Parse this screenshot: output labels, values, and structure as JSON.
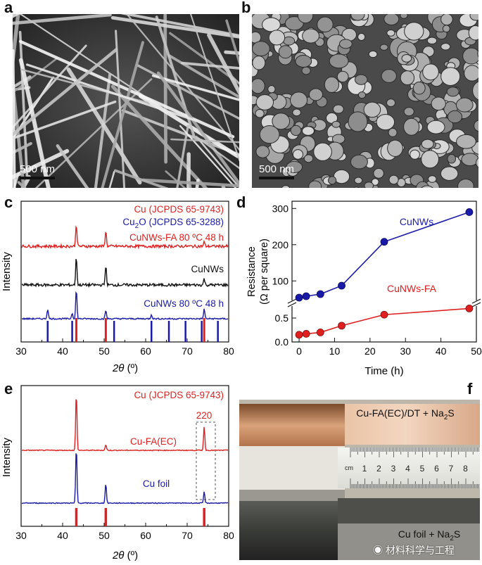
{
  "panels": {
    "a": {
      "label": "a",
      "scale": "500 nm"
    },
    "b": {
      "label": "b",
      "scale": "500 nm"
    },
    "c": {
      "label": "c",
      "ref_cu": "Cu (JCPDS 65-9743)",
      "ref_cu2o_prefix": "Cu",
      "ref_cu2o_sub": "2",
      "ref_cu2o_suffix": "O (JCPDS 65-3288)",
      "trace_fa": "CuNWs-FA 80 ºC 48 h",
      "trace_cunws": "CuNWs",
      "trace_80": "CuNWs 80 ºC 48 h",
      "ylabel": "Intensity",
      "xlabel_italic": "2θ",
      "xlabel_unit": " (º)",
      "xticks": [
        "30",
        "40",
        "50",
        "60",
        "70",
        "80"
      ]
    },
    "d": {
      "label": "d",
      "ylabel_line1": "Resistance",
      "ylabel_line2": "(Ω per square)",
      "xlabel": "Time (h)",
      "series_cunws": "CuNWs",
      "series_fa": "CuNWs-FA",
      "xticks": [
        "0",
        "10",
        "20",
        "30",
        "40",
        "50"
      ],
      "yticks_top": [
        "100",
        "200",
        "300"
      ],
      "yticks_bottom": [
        "0.0",
        "0.5"
      ]
    },
    "e": {
      "label": "e",
      "ref_cu": "Cu (JCPDS 65-9743)",
      "peak": "220",
      "trace_fa": "Cu-FA(EC)",
      "trace_foil": "Cu foil",
      "ylabel": "Intensity",
      "xlabel_italic": "2θ",
      "xlabel_unit": " (º)",
      "xticks": [
        "30",
        "40",
        "50",
        "60",
        "70",
        "80"
      ]
    },
    "f": {
      "label": "f",
      "top_caption_prefix": "Cu-FA(EC)/DT + Na",
      "top_caption_sub": "2",
      "top_caption_suffix": "S",
      "bottom_caption_prefix": "Cu foil + Na",
      "bottom_caption_sub": "2",
      "bottom_caption_suffix": "S",
      "ruler_unit": "cm",
      "ruler_numbers": [
        "1",
        "2",
        "3",
        "4",
        "5",
        "6",
        "7",
        "8"
      ],
      "watermark": "材料科学与工程"
    }
  },
  "chart_data": [
    {
      "type": "line",
      "panel": "c",
      "xlim": [
        30,
        80
      ],
      "series": [
        {
          "name": "CuNWs-FA 80 ºC 48 h",
          "color": "#e02020",
          "peaks": [
            43.3,
            50.4,
            74.1
          ]
        },
        {
          "name": "CuNWs",
          "color": "#111111",
          "peaks": [
            43.3,
            50.4,
            74.1
          ]
        },
        {
          "name": "CuNWs 80 ºC 48 h",
          "color": "#1a1aa8",
          "peaks": [
            36.4,
            42.3,
            43.3,
            50.4,
            61.4,
            74.1
          ]
        }
      ],
      "reference_cu": [
        43.3,
        50.4,
        74.1
      ],
      "reference_cu2o": [
        36.4,
        42.3,
        52.4,
        61.4,
        65.6,
        69.6,
        73.5,
        77.4
      ]
    },
    {
      "type": "line",
      "panel": "d",
      "xlim": [
        -2,
        50
      ],
      "series": [
        {
          "name": "CuNWs",
          "color": "#1a1aa8",
          "x": [
            0,
            2,
            6,
            12,
            24,
            48
          ],
          "y": [
            0.88,
            0.9,
            0.98,
            1.2,
            208,
            290
          ]
        },
        {
          "name": "CuNWs-FA",
          "color": "#e02020",
          "x": [
            0,
            2,
            6,
            12,
            24,
            48
          ],
          "y": [
            0.15,
            0.17,
            0.2,
            0.34,
            0.57,
            0.7
          ]
        }
      ]
    },
    {
      "type": "line",
      "panel": "e",
      "xlim": [
        30,
        80
      ],
      "series": [
        {
          "name": "Cu-FA(EC)",
          "color": "#e02020",
          "peaks": [
            43.3,
            50.4,
            74.1
          ]
        },
        {
          "name": "Cu foil",
          "color": "#1a1aa8",
          "peaks": [
            43.3,
            50.4,
            74.1
          ]
        }
      ],
      "reference_cu": [
        43.3,
        50.4,
        74.1
      ]
    }
  ]
}
